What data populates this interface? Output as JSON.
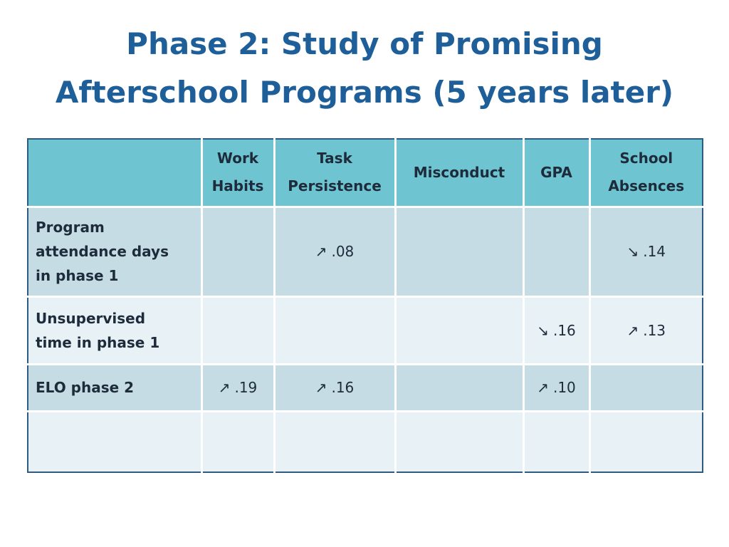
{
  "slide": {
    "title_line1": "Phase 2:  Study of Promising",
    "title_line2": "Afterschool Programs (5 years later)"
  },
  "table": {
    "headers": {
      "blank": "",
      "work_habits_1": "Work",
      "work_habits_2": "Habits",
      "task_persistence_1": "Task",
      "task_persistence_2": "Persistence",
      "misconduct": "Misconduct",
      "gpa": "GPA",
      "school_absences_1": "School",
      "school_absences_2": "Absences"
    },
    "rows": [
      {
        "label_1": "Program",
        "label_2": "attendance days",
        "label_3": "in phase 1",
        "task_persistence": {
          "arrow": "↗",
          "value": ".08"
        },
        "school_absences": {
          "arrow": "↘",
          "value": ".14"
        }
      },
      {
        "label_1": "Unsupervised",
        "label_2": "time in phase 1",
        "gpa": {
          "arrow": "↘",
          "value": ".16"
        },
        "school_absences": {
          "arrow": "↗",
          "value": ".13"
        }
      },
      {
        "label_1": "ELO phase 2",
        "work_habits": {
          "arrow": "↗",
          "value": ".19"
        },
        "task_persistence": {
          "arrow": "↗",
          "value": ".16"
        },
        "gpa": {
          "arrow": "↗",
          "value": ".10"
        }
      }
    ]
  }
}
